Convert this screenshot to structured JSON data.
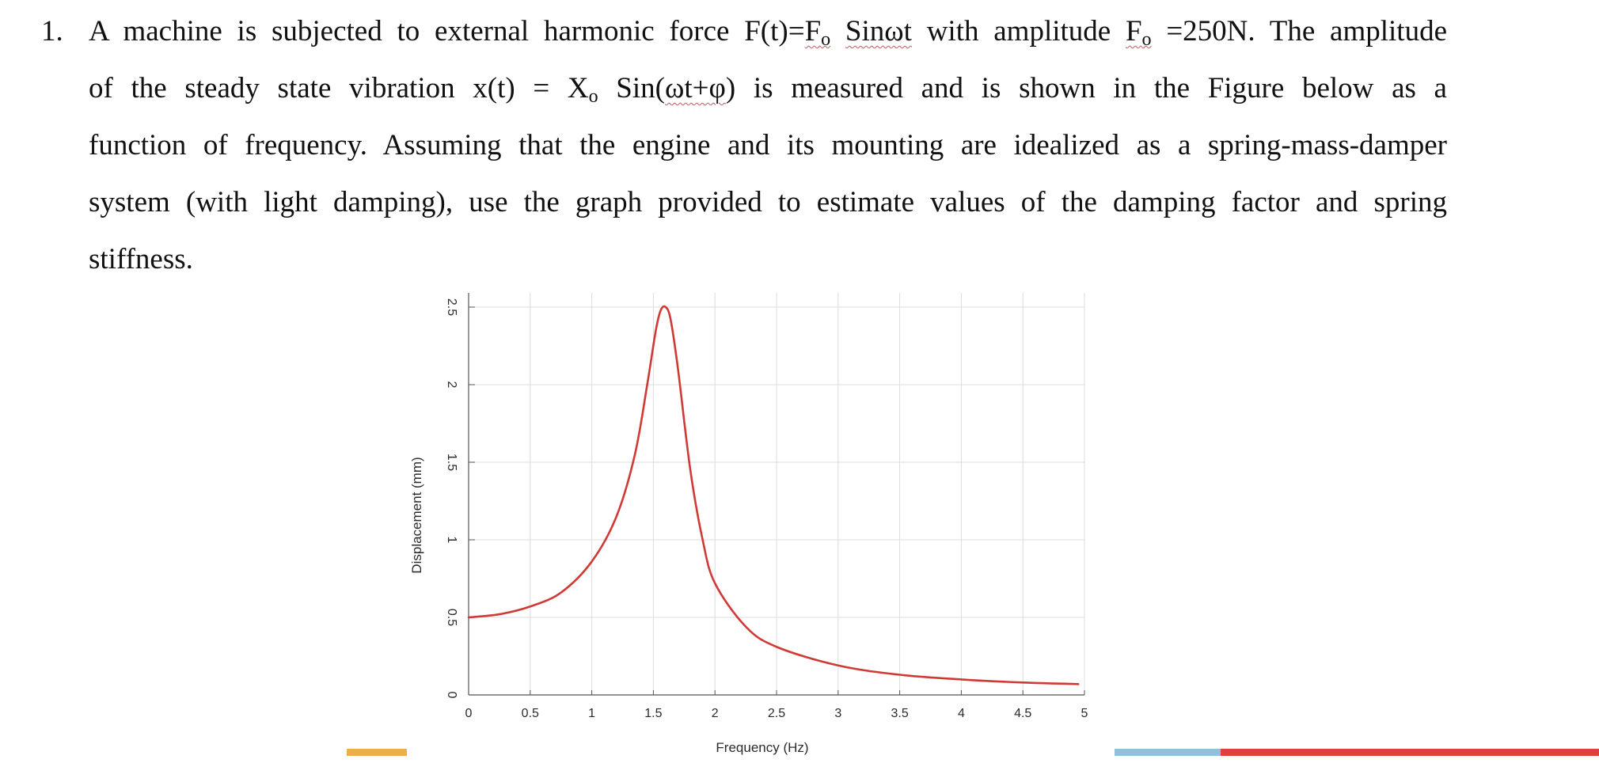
{
  "problem": {
    "number": "1.",
    "lines": {
      "l1_a": "A machine is subjected to external harmonic force F(t)=",
      "l1_f": "F",
      "l1_f_sub": "o",
      "l1_sin": "Sinωt",
      "l1_b": " with amplitude ",
      "l1_f2": "F",
      "l1_f2_sub": "o",
      "l1_c": " =250N. The amplitude",
      "l2_a": "of the steady state vibration x(t) = X",
      "l2_sub": "o",
      "l2_b": " Sin(",
      "l2_wt": "ωt+φ",
      "l2_c": ") is measured and is shown in the Figure below as a",
      "l3": "function of frequency. Assuming that the engine and its mounting are idealized as a spring-mass-damper",
      "l4": "system (with light damping), use the graph provided to estimate values of the damping factor and spring",
      "l5": "stiffness."
    }
  },
  "chart_data": {
    "type": "line",
    "title": "",
    "xlabel": "Frequency (Hz)",
    "ylabel": "Displacement (mm)",
    "xlim": [
      0,
      5
    ],
    "ylim": [
      0,
      2.5
    ],
    "xticks": [
      "0",
      "0.5",
      "1",
      "1.5",
      "2",
      "2.5",
      "3",
      "3.5",
      "4",
      "4.5",
      "5"
    ],
    "yticks": [
      "0",
      "0.5",
      "1",
      "1.5",
      "2",
      "2.5"
    ],
    "grid": true,
    "series": [
      {
        "color": "#d03a35",
        "x": [
          0,
          0.25,
          0.5,
          0.75,
          1.0,
          1.2,
          1.35,
          1.45,
          1.52,
          1.56,
          1.6,
          1.64,
          1.7,
          1.8,
          1.9,
          2.0,
          2.25,
          2.5,
          3.0,
          3.5,
          4.0,
          4.5,
          4.95
        ],
        "y": [
          0.5,
          0.52,
          0.57,
          0.66,
          0.86,
          1.15,
          1.55,
          2.0,
          2.35,
          2.48,
          2.5,
          2.42,
          2.1,
          1.45,
          1.0,
          0.72,
          0.44,
          0.31,
          0.19,
          0.13,
          0.1,
          0.08,
          0.07
        ]
      }
    ]
  },
  "decorations": {
    "bar_colors": [
      "#e8b14a",
      "#8fc0de",
      "#e2403a"
    ]
  }
}
